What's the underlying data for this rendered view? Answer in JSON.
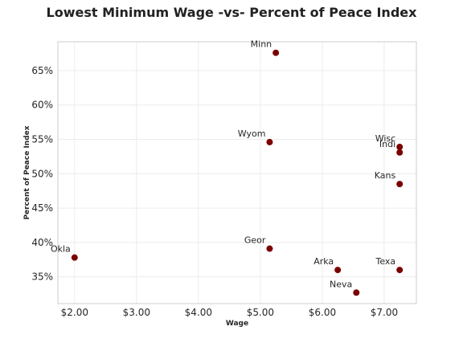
{
  "chart_data": {
    "type": "scatter",
    "title": "Lowest Minimum Wage -vs- Percent of Peace Index",
    "xlabel": "Wage",
    "ylabel": "Percent of Peace Index",
    "xlim": [
      1.73,
      7.52
    ],
    "ylim": [
      0.311,
      0.692
    ],
    "x_ticks": [
      2,
      3,
      4,
      5,
      6,
      7
    ],
    "x_tick_labels": [
      "$2.00",
      "$3.00",
      "$4.00",
      "$5.00",
      "$6.00",
      "$7.00"
    ],
    "y_ticks": [
      0.35,
      0.4,
      0.45,
      0.5,
      0.55,
      0.6,
      0.65
    ],
    "y_tick_labels": [
      "35%",
      "40%",
      "45%",
      "50%",
      "55%",
      "60%",
      "65%"
    ],
    "grid": true,
    "marker_color": "#7b0000",
    "points": [
      {
        "label": "Minn",
        "x": 5.25,
        "y": 0.676
      },
      {
        "label": "Wyom",
        "x": 5.15,
        "y": 0.546
      },
      {
        "label": "Wisc",
        "x": 7.25,
        "y": 0.539
      },
      {
        "label": "Indi",
        "x": 7.25,
        "y": 0.531
      },
      {
        "label": "Kans",
        "x": 7.25,
        "y": 0.485
      },
      {
        "label": "Geor",
        "x": 5.15,
        "y": 0.391
      },
      {
        "label": "Okla",
        "x": 2.0,
        "y": 0.378
      },
      {
        "label": "Arka",
        "x": 6.25,
        "y": 0.36
      },
      {
        "label": "Texa",
        "x": 7.25,
        "y": 0.36
      },
      {
        "label": "Neva",
        "x": 6.55,
        "y": 0.327
      }
    ]
  }
}
